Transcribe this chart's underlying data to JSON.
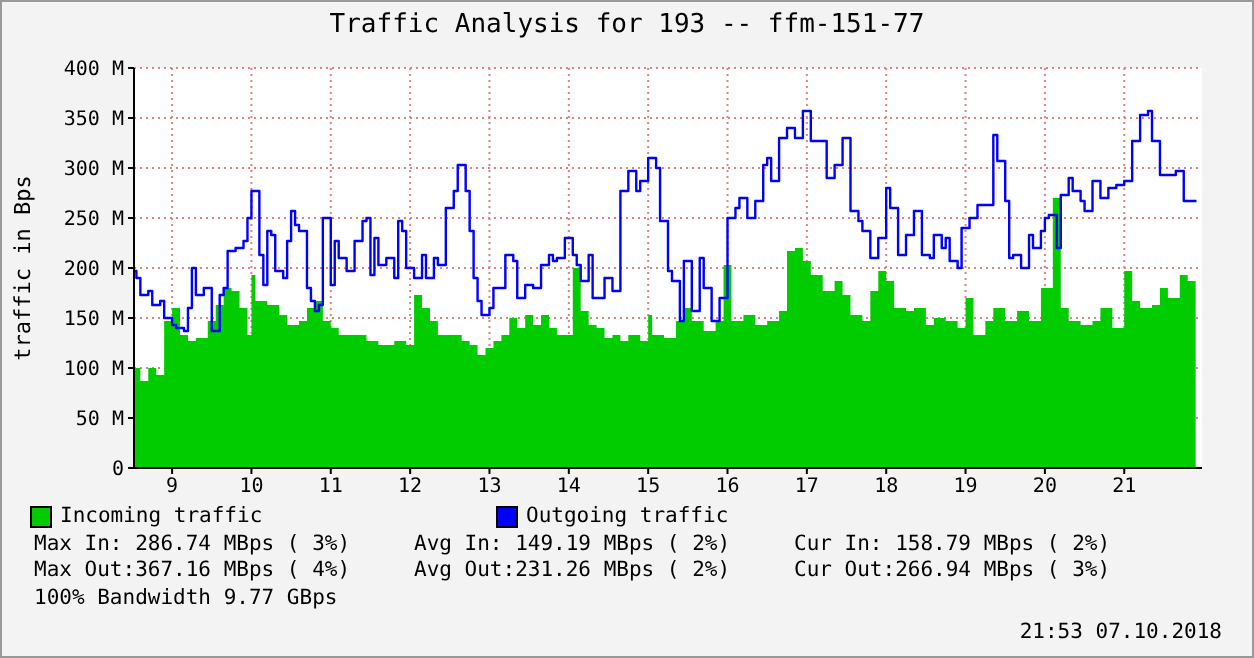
{
  "chart_data": {
    "type": "area",
    "title": "Traffic Analysis for 193 -- ffm-151-77",
    "ylabel": "traffic in Bps",
    "xlim": [
      8.52,
      21.98
    ],
    "xticks": [
      9,
      10,
      11,
      12,
      13,
      14,
      15,
      16,
      17,
      18,
      19,
      20,
      21
    ],
    "ylim": [
      0,
      400
    ],
    "yticks": [
      0,
      {
        "value": 50,
        "label": "50 M"
      },
      {
        "value": 100,
        "label": "100 M"
      },
      {
        "value": 150,
        "label": "150 M"
      },
      {
        "value": 200,
        "label": "200 M"
      },
      {
        "value": 250,
        "label": "250 M"
      },
      {
        "value": 300,
        "label": "300 M"
      },
      {
        "value": 350,
        "label": "350 M"
      },
      {
        "value": 400,
        "label": "400 M"
      }
    ],
    "grid": true,
    "legend": "bottom",
    "series": [
      {
        "name": "Incoming traffic",
        "color": "#00cc00",
        "x": [
          8.52,
          8.6,
          8.7,
          8.8,
          8.9,
          9.0,
          9.1,
          9.2,
          9.3,
          9.45,
          9.55,
          9.65,
          9.75,
          9.85,
          9.95,
          10.0,
          10.05,
          10.2,
          10.35,
          10.45,
          10.6,
          10.7,
          10.8,
          10.9,
          11.0,
          11.1,
          11.3,
          11.45,
          11.6,
          11.8,
          11.95,
          12.05,
          12.15,
          12.25,
          12.35,
          12.5,
          12.65,
          12.75,
          12.85,
          12.95,
          13.05,
          13.15,
          13.25,
          13.35,
          13.45,
          13.55,
          13.65,
          13.75,
          13.85,
          14.0,
          14.05,
          14.15,
          14.25,
          14.35,
          14.45,
          14.55,
          14.65,
          14.75,
          14.9,
          15.0,
          15.05,
          15.2,
          15.35,
          15.45,
          15.55,
          15.7,
          15.85,
          15.95,
          16.05,
          16.2,
          16.35,
          16.5,
          16.65,
          16.75,
          16.85,
          16.95,
          17.05,
          17.2,
          17.35,
          17.45,
          17.55,
          17.7,
          17.8,
          17.9,
          18.0,
          18.1,
          18.25,
          18.35,
          18.5,
          18.6,
          18.75,
          18.9,
          19.0,
          19.1,
          19.25,
          19.35,
          19.5,
          19.65,
          19.8,
          19.95,
          20.1,
          20.2,
          20.3,
          20.45,
          20.6,
          20.7,
          20.85,
          21.0,
          21.1,
          21.2,
          21.35,
          21.45,
          21.55,
          21.7,
          21.8,
          21.9
        ],
        "values": [
          100,
          87,
          100,
          93,
          147,
          160,
          133,
          127,
          130,
          147,
          163,
          180,
          177,
          160,
          133,
          193,
          167,
          163,
          153,
          143,
          147,
          160,
          167,
          147,
          140,
          133,
          133,
          127,
          123,
          127,
          123,
          173,
          160,
          147,
          133,
          133,
          127,
          123,
          113,
          120,
          127,
          133,
          150,
          140,
          153,
          143,
          153,
          140,
          133,
          133,
          200,
          157,
          143,
          140,
          130,
          133,
          127,
          133,
          127,
          153,
          133,
          130,
          147,
          160,
          147,
          137,
          147,
          203,
          147,
          153,
          143,
          147,
          157,
          217,
          220,
          207,
          193,
          177,
          187,
          173,
          153,
          147,
          177,
          197,
          187,
          160,
          157,
          160,
          143,
          150,
          147,
          140,
          170,
          133,
          147,
          160,
          147,
          157,
          147,
          180,
          270,
          160,
          147,
          143,
          147,
          160,
          140,
          197,
          167,
          160,
          163,
          180,
          170,
          193,
          187,
          160
        ]
      },
      {
        "name": "Outgoing traffic",
        "type": "step",
        "color": "#0000ff",
        "x": [
          8.52,
          8.55,
          8.6,
          8.7,
          8.75,
          8.85,
          8.9,
          9.0,
          9.05,
          9.15,
          9.2,
          9.25,
          9.3,
          9.4,
          9.5,
          9.6,
          9.65,
          9.7,
          9.8,
          9.9,
          9.95,
          10.0,
          10.05,
          10.1,
          10.15,
          10.2,
          10.25,
          10.3,
          10.4,
          10.45,
          10.5,
          10.55,
          10.6,
          10.7,
          10.75,
          10.8,
          10.85,
          10.9,
          11.0,
          11.05,
          11.1,
          11.2,
          11.3,
          11.4,
          11.45,
          11.5,
          11.55,
          11.6,
          11.7,
          11.8,
          11.85,
          11.9,
          11.95,
          12.05,
          12.15,
          12.2,
          12.3,
          12.35,
          12.45,
          12.55,
          12.6,
          12.7,
          12.75,
          12.8,
          12.85,
          12.9,
          13.0,
          13.05,
          13.15,
          13.2,
          13.3,
          13.35,
          13.45,
          13.55,
          13.65,
          13.75,
          13.8,
          13.85,
          13.95,
          14.05,
          14.1,
          14.15,
          14.25,
          14.3,
          14.45,
          14.55,
          14.65,
          14.75,
          14.85,
          14.9,
          15.0,
          15.1,
          15.15,
          15.25,
          15.3,
          15.4,
          15.45,
          15.55,
          15.65,
          15.7,
          15.8,
          15.9,
          16.0,
          16.1,
          16.15,
          16.25,
          16.35,
          16.45,
          16.5,
          16.55,
          16.65,
          16.75,
          16.85,
          16.95,
          17.05,
          17.15,
          17.25,
          17.35,
          17.45,
          17.55,
          17.65,
          17.7,
          17.8,
          17.9,
          18.0,
          18.05,
          18.15,
          18.25,
          18.35,
          18.45,
          18.55,
          18.6,
          18.7,
          18.75,
          18.8,
          18.9,
          18.95,
          19.05,
          19.15,
          19.3,
          19.35,
          19.4,
          19.5,
          19.55,
          19.6,
          19.7,
          19.8,
          19.85,
          19.95,
          20.0,
          20.05,
          20.15,
          20.2,
          20.3,
          20.35,
          20.45,
          20.5,
          20.6,
          20.7,
          20.8,
          20.9,
          21.0,
          21.1,
          21.2,
          21.3,
          21.35,
          21.45,
          21.55,
          21.65,
          21.75,
          21.91
        ],
        "values": [
          197,
          190,
          173,
          177,
          163,
          167,
          150,
          143,
          140,
          137,
          160,
          200,
          173,
          180,
          137,
          173,
          180,
          217,
          220,
          227,
          250,
          277,
          277,
          213,
          183,
          237,
          233,
          197,
          190,
          227,
          257,
          243,
          237,
          180,
          167,
          157,
          163,
          250,
          183,
          227,
          210,
          197,
          227,
          247,
          250,
          193,
          230,
          203,
          210,
          190,
          247,
          237,
          200,
          190,
          213,
          190,
          210,
          203,
          260,
          277,
          303,
          277,
          237,
          190,
          167,
          153,
          160,
          180,
          180,
          213,
          207,
          170,
          183,
          180,
          203,
          213,
          207,
          210,
          230,
          213,
          203,
          187,
          213,
          170,
          190,
          177,
          277,
          297,
          277,
          287,
          310,
          300,
          247,
          197,
          187,
          147,
          207,
          157,
          210,
          180,
          147,
          170,
          250,
          260,
          270,
          250,
          267,
          303,
          310,
          287,
          330,
          340,
          330,
          357,
          327,
          327,
          290,
          303,
          330,
          257,
          247,
          237,
          210,
          230,
          280,
          260,
          213,
          233,
          257,
          213,
          210,
          233,
          220,
          230,
          207,
          200,
          240,
          250,
          263,
          263,
          333,
          307,
          267,
          210,
          213,
          200,
          233,
          220,
          237,
          250,
          253,
          220,
          273,
          290,
          277,
          267,
          257,
          287,
          270,
          280,
          283,
          287,
          327,
          353,
          357,
          327,
          293,
          293,
          297,
          267,
          267
        ]
      }
    ],
    "annotations": [
      "Max In: 286.74 MBps ( 3%)",
      "Avg In: 149.19 MBps ( 2%)",
      "Cur In: 158.79 MBps ( 2%)",
      "Max Out:367.16 MBps ( 4%)",
      "Avg Out:231.26 MBps ( 2%)",
      "Cur Out:266.94 MBps ( 3%)",
      "100% Bandwidth 9.77 GBps",
      "21:53 07.10.2018"
    ]
  }
}
